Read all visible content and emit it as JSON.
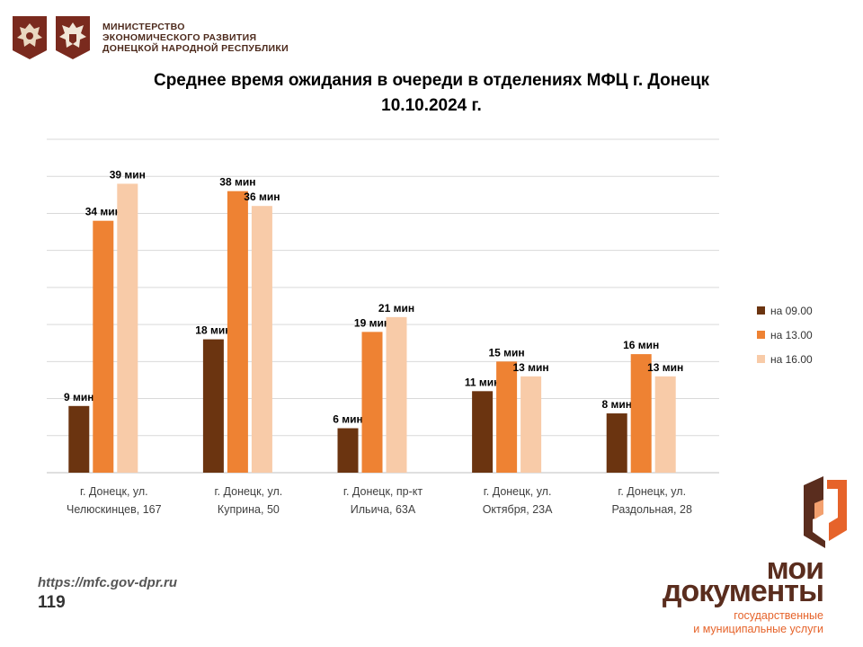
{
  "header": {
    "ministry_lines": [
      "МИНИСТЕРСТВО",
      "ЭКОНОМИЧЕСКОГО РАЗВИТИЯ",
      "ДОНЕЦКОЙ НАРОДНОЙ РЕСПУБЛИКИ"
    ],
    "emblem_icons": [
      "russia-coat-of-arms-icon",
      "dpr-coat-of-arms-icon"
    ]
  },
  "chart_data": {
    "type": "bar",
    "title_lines": [
      "Среднее время ожидания в очереди в отделениях МФЦ г. Донецк",
      "10.10.2024 г."
    ],
    "categories": [
      [
        "г. Донецк, ул.",
        "Челюскинцев, 167"
      ],
      [
        "г. Донецк, ул.",
        "Куприна, 50"
      ],
      [
        "г. Донецк, пр-кт",
        "Ильича, 63А"
      ],
      [
        "г. Донецк, ул.",
        "Октября, 23А"
      ],
      [
        "г. Донецк, ул.",
        "Раздольная, 28"
      ]
    ],
    "series": [
      {
        "name": "на 09.00",
        "color": "#6b3410",
        "values": [
          9,
          18,
          6,
          11,
          8
        ]
      },
      {
        "name": "на 13.00",
        "color": "#ee8233",
        "values": [
          34,
          38,
          19,
          15,
          16
        ]
      },
      {
        "name": "на 16.00",
        "color": "#f8cba8",
        "values": [
          39,
          36,
          21,
          13,
          13
        ]
      }
    ],
    "value_suffix": " мин",
    "ylim": [
      0,
      45
    ],
    "grid": true,
    "legend_position": "right"
  },
  "footer": {
    "url": "https://mfc.gov-dpr.ru",
    "page_number": "119"
  },
  "brand": {
    "line1": "мои",
    "line2": "документы",
    "sub1": "государственные",
    "sub2": "и муниципальные услуги",
    "colors": {
      "dark": "#5a2d1e",
      "accent": "#e6632a"
    }
  }
}
